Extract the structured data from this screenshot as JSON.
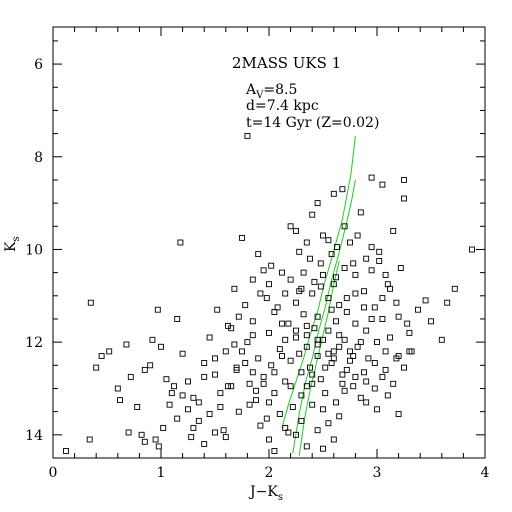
{
  "chart_data": {
    "type": "scatter",
    "title": "2MASS UKS 1",
    "annotations": [
      "A",
      "V",
      "=8.5",
      "d=7.4 kpc",
      "t=14 Gyr (Z=0.02)"
    ],
    "xlabel": {
      "main": "J−K",
      "sub": "s"
    },
    "ylabel": {
      "main": "K",
      "sub": "s"
    },
    "xlim": [
      0,
      4
    ],
    "ylim": [
      14.5,
      5.2
    ],
    "xticks": [
      0,
      1,
      2,
      3,
      4
    ],
    "xtick_labels": [
      "0",
      "1",
      "2",
      "3",
      "4"
    ],
    "yticks": [
      6,
      8,
      10,
      12,
      14
    ],
    "ytick_labels": [
      "6",
      "8",
      "10",
      "12",
      "14"
    ],
    "grid": false,
    "series": [
      {
        "kind": "points",
        "marker": "open-square",
        "color": "#000000",
        "points": [
          [
            0.12,
            14.35
          ],
          [
            0.34,
            14.1
          ],
          [
            0.35,
            11.15
          ],
          [
            0.4,
            12.55
          ],
          [
            0.45,
            12.3
          ],
          [
            0.52,
            12.2
          ],
          [
            0.6,
            13.0
          ],
          [
            0.62,
            13.25
          ],
          [
            0.68,
            12.05
          ],
          [
            0.72,
            12.75
          ],
          [
            0.7,
            13.95
          ],
          [
            0.78,
            13.4
          ],
          [
            0.85,
            12.6
          ],
          [
            0.9,
            12.5
          ],
          [
            0.92,
            11.95
          ],
          [
            0.97,
            11.3
          ],
          [
            1.0,
            12.1
          ],
          [
            1.05,
            12.8
          ],
          [
            1.1,
            13.1
          ],
          [
            0.82,
            14.0
          ],
          [
            0.85,
            14.15
          ],
          [
            0.95,
            14.1
          ],
          [
            0.98,
            14.25
          ],
          [
            1.2,
            12.25
          ],
          [
            1.15,
            11.5
          ],
          [
            1.18,
            9.85
          ],
          [
            1.25,
            12.85
          ],
          [
            1.3,
            13.2
          ],
          [
            1.35,
            13.7
          ],
          [
            1.28,
            14.05
          ],
          [
            1.4,
            12.45
          ],
          [
            1.45,
            11.9
          ],
          [
            1.5,
            12.7
          ],
          [
            1.52,
            11.3
          ],
          [
            1.55,
            13.1
          ],
          [
            1.6,
            12.2
          ],
          [
            1.58,
            13.9
          ],
          [
            1.62,
            12.95
          ],
          [
            1.65,
            11.7
          ],
          [
            1.68,
            10.85
          ],
          [
            1.7,
            12.55
          ],
          [
            1.72,
            13.5
          ],
          [
            1.75,
            9.75
          ],
          [
            1.78,
            11.2
          ],
          [
            1.8,
            12.0
          ],
          [
            1.82,
            12.9
          ],
          [
            1.85,
            11.55
          ],
          [
            1.88,
            13.25
          ],
          [
            1.9,
            12.35
          ],
          [
            1.92,
            10.95
          ],
          [
            1.95,
            12.75
          ],
          [
            1.98,
            13.65
          ],
          [
            2.0,
            11.8
          ],
          [
            2.02,
            12.5
          ],
          [
            2.05,
            13.1
          ],
          [
            2.08,
            11.25
          ],
          [
            2.1,
            12.15
          ],
          [
            2.12,
            10.5
          ],
          [
            2.15,
            12.85
          ],
          [
            2.18,
            11.6
          ],
          [
            2.2,
            12.4
          ],
          [
            2.22,
            13.4
          ],
          [
            2.25,
            11.9
          ],
          [
            2.28,
            10.9
          ],
          [
            2.3,
            12.65
          ],
          [
            2.32,
            11.4
          ],
          [
            2.35,
            12.1
          ],
          [
            2.38,
            10.2
          ],
          [
            2.4,
            12.9
          ],
          [
            2.42,
            11.7
          ],
          [
            2.45,
            12.3
          ],
          [
            2.48,
            10.8
          ],
          [
            2.5,
            11.95
          ],
          [
            2.52,
            12.55
          ],
          [
            2.55,
            9.8
          ],
          [
            2.58,
            11.3
          ],
          [
            2.6,
            12.2
          ],
          [
            2.62,
            10.6
          ],
          [
            2.65,
            11.85
          ],
          [
            2.68,
            12.7
          ],
          [
            2.7,
            9.5
          ],
          [
            2.72,
            11.05
          ],
          [
            2.75,
            12.4
          ],
          [
            2.78,
            10.3
          ],
          [
            2.8,
            11.6
          ],
          [
            2.82,
            12.1
          ],
          [
            2.85,
            9.2
          ],
          [
            2.88,
            10.9
          ],
          [
            2.9,
            11.75
          ],
          [
            2.92,
            12.35
          ],
          [
            2.95,
            10.45
          ],
          [
            2.98,
            11.25
          ],
          [
            3.0,
            12.0
          ],
          [
            3.02,
            10.05
          ],
          [
            3.05,
            11.5
          ],
          [
            3.08,
            12.6
          ],
          [
            3.1,
            10.75
          ],
          [
            3.12,
            11.9
          ],
          [
            3.15,
            9.6
          ],
          [
            3.18,
            11.15
          ],
          [
            3.2,
            12.3
          ],
          [
            3.22,
            10.4
          ],
          [
            3.25,
            8.9
          ],
          [
            3.25,
            8.5
          ],
          [
            3.28,
            11.6
          ],
          [
            3.3,
            11.8
          ],
          [
            3.32,
            12.2
          ],
          [
            3.38,
            11.3
          ],
          [
            3.45,
            11.1
          ],
          [
            3.5,
            11.55
          ],
          [
            3.6,
            11.95
          ],
          [
            3.65,
            11.15
          ],
          [
            3.72,
            10.85
          ],
          [
            3.88,
            10.0
          ],
          [
            2.95,
            8.45
          ],
          [
            3.05,
            8.6
          ],
          [
            1.8,
            7.55
          ],
          [
            2.0,
            14.1
          ],
          [
            2.05,
            14.35
          ],
          [
            2.15,
            13.85
          ],
          [
            2.25,
            14.0
          ],
          [
            2.35,
            14.25
          ],
          [
            2.45,
            13.9
          ],
          [
            2.5,
            14.3
          ],
          [
            2.55,
            13.75
          ],
          [
            2.6,
            14.1
          ],
          [
            2.65,
            13.6
          ],
          [
            2.3,
            13.7
          ],
          [
            2.4,
            13.35
          ],
          [
            2.18,
            13.95
          ],
          [
            2.52,
            13.1
          ],
          [
            2.62,
            13.3
          ],
          [
            2.7,
            13.05
          ],
          [
            2.78,
            12.95
          ],
          [
            2.85,
            13.2
          ],
          [
            2.72,
            12.6
          ],
          [
            2.9,
            12.85
          ],
          [
            2.98,
            13.0
          ],
          [
            3.05,
            12.75
          ],
          [
            3.15,
            12.9
          ],
          [
            3.25,
            12.55
          ],
          [
            3.3,
            12.2
          ],
          [
            3.18,
            12.35
          ],
          [
            2.2,
            9.5
          ],
          [
            2.25,
            9.6
          ],
          [
            2.4,
            9.25
          ],
          [
            2.45,
            9.0
          ],
          [
            2.6,
            8.8
          ],
          [
            2.68,
            8.7
          ],
          [
            2.5,
            9.7
          ],
          [
            2.35,
            9.85
          ],
          [
            2.28,
            10.05
          ],
          [
            2.32,
            10.5
          ],
          [
            2.42,
            10.7
          ],
          [
            2.48,
            10.3
          ],
          [
            2.58,
            10.1
          ],
          [
            2.63,
            9.95
          ],
          [
            2.75,
            9.85
          ],
          [
            2.82,
            9.7
          ],
          [
            2.9,
            10.2
          ],
          [
            2.95,
            9.95
          ],
          [
            3.02,
            10.25
          ],
          [
            3.08,
            10.55
          ],
          [
            1.9,
            10.1
          ],
          [
            1.95,
            10.45
          ],
          [
            2.0,
            10.75
          ],
          [
            1.98,
            11.05
          ],
          [
            2.05,
            11.35
          ],
          [
            2.12,
            11.6
          ],
          [
            1.85,
            11.85
          ],
          [
            1.75,
            12.2
          ],
          [
            1.7,
            12.6
          ],
          [
            1.65,
            12.95
          ],
          [
            1.55,
            13.4
          ],
          [
            1.45,
            13.55
          ],
          [
            1.35,
            13.3
          ],
          [
            1.25,
            13.45
          ],
          [
            1.15,
            13.65
          ],
          [
            1.08,
            13.35
          ],
          [
            1.02,
            13.85
          ],
          [
            1.5,
            13.95
          ],
          [
            1.6,
            14.05
          ],
          [
            1.4,
            14.2
          ],
          [
            1.3,
            13.85
          ],
          [
            1.2,
            13.15
          ],
          [
            1.12,
            12.95
          ],
          [
            1.4,
            12.75
          ],
          [
            1.5,
            12.35
          ],
          [
            1.62,
            11.65
          ],
          [
            1.72,
            11.45
          ],
          [
            1.85,
            10.65
          ],
          [
            2.02,
            10.35
          ],
          [
            2.15,
            10.95
          ],
          [
            2.25,
            11.15
          ],
          [
            2.35,
            11.65
          ],
          [
            2.45,
            11.45
          ],
          [
            2.55,
            11.05
          ],
          [
            2.62,
            11.55
          ],
          [
            2.72,
            11.35
          ],
          [
            2.8,
            10.95
          ],
          [
            2.88,
            11.25
          ],
          [
            2.95,
            11.5
          ],
          [
            3.05,
            11.05
          ],
          [
            3.12,
            10.85
          ],
          [
            3.2,
            11.45
          ],
          [
            2.28,
            12.25
          ],
          [
            2.38,
            12.55
          ],
          [
            2.48,
            12.8
          ],
          [
            2.58,
            12.45
          ],
          [
            2.68,
            12.9
          ],
          [
            2.78,
            12.3
          ],
          [
            2.88,
            12.65
          ],
          [
            2.98,
            12.45
          ],
          [
            3.08,
            12.2
          ],
          [
            2.2,
            12.95
          ],
          [
            2.3,
            13.15
          ],
          [
            2.4,
            12.7
          ],
          [
            2.5,
            13.45
          ],
          [
            2.6,
            12.35
          ],
          [
            2.7,
            11.95
          ],
          [
            2.8,
            12.75
          ],
          [
            2.9,
            13.3
          ],
          [
            3.0,
            13.45
          ],
          [
            3.1,
            13.15
          ],
          [
            3.2,
            13.55
          ],
          [
            2.12,
            12.3
          ],
          [
            2.05,
            12.65
          ],
          [
            1.95,
            12.9
          ],
          [
            1.88,
            13.05
          ],
          [
            1.82,
            13.35
          ],
          [
            1.78,
            12.45
          ],
          [
            1.68,
            12.05
          ],
          [
            2.1,
            13.55
          ],
          [
            2.0,
            13.3
          ],
          [
            1.92,
            13.8
          ],
          [
            1.85,
            12.65
          ],
          [
            2.35,
            12.95
          ],
          [
            2.45,
            12.05
          ],
          [
            2.55,
            12.25
          ],
          [
            2.65,
            12.1
          ],
          [
            2.75,
            12.2
          ],
          [
            2.85,
            12.0
          ],
          [
            2.65,
            11.2
          ],
          [
            2.55,
            11.75
          ],
          [
            2.45,
            11.95
          ],
          [
            2.35,
            11.85
          ],
          [
            2.25,
            11.75
          ],
          [
            2.15,
            11.95
          ],
          [
            2.8,
            10.55
          ],
          [
            2.7,
            10.4
          ],
          [
            2.6,
            10.75
          ],
          [
            2.5,
            10.55
          ],
          [
            2.4,
            10.95
          ],
          [
            2.3,
            10.85
          ],
          [
            2.2,
            10.65
          ]
        ]
      },
      {
        "kind": "isochrone",
        "color": "#22cc22",
        "lines": [
          [
            [
              2.12,
              13.85
            ],
            [
              2.18,
              13.35
            ],
            [
              2.25,
              12.85
            ],
            [
              2.32,
              12.35
            ],
            [
              2.38,
              11.85
            ],
            [
              2.45,
              11.35
            ],
            [
              2.5,
              10.85
            ],
            [
              2.56,
              10.35
            ],
            [
              2.62,
              9.85
            ],
            [
              2.68,
              9.35
            ],
            [
              2.72,
              8.85
            ],
            [
              2.76,
              8.35
            ],
            [
              2.8,
              7.55
            ]
          ],
          [
            [
              2.22,
              14.4
            ],
            [
              2.28,
              13.55
            ],
            [
              2.34,
              12.85
            ],
            [
              2.4,
              12.35
            ],
            [
              2.46,
              11.75
            ],
            [
              2.52,
              11.25
            ],
            [
              2.58,
              10.65
            ],
            [
              2.64,
              10.15
            ],
            [
              2.7,
              9.6
            ],
            [
              2.76,
              9.0
            ],
            [
              2.8,
              8.5
            ]
          ],
          [
            [
              2.28,
              14.45
            ],
            [
              2.33,
              13.65
            ],
            [
              2.38,
              13.05
            ],
            [
              2.44,
              12.45
            ],
            [
              2.49,
              11.95
            ],
            [
              2.55,
              11.35
            ],
            [
              2.6,
              10.75
            ],
            [
              2.65,
              10.25
            ]
          ]
        ]
      }
    ]
  }
}
